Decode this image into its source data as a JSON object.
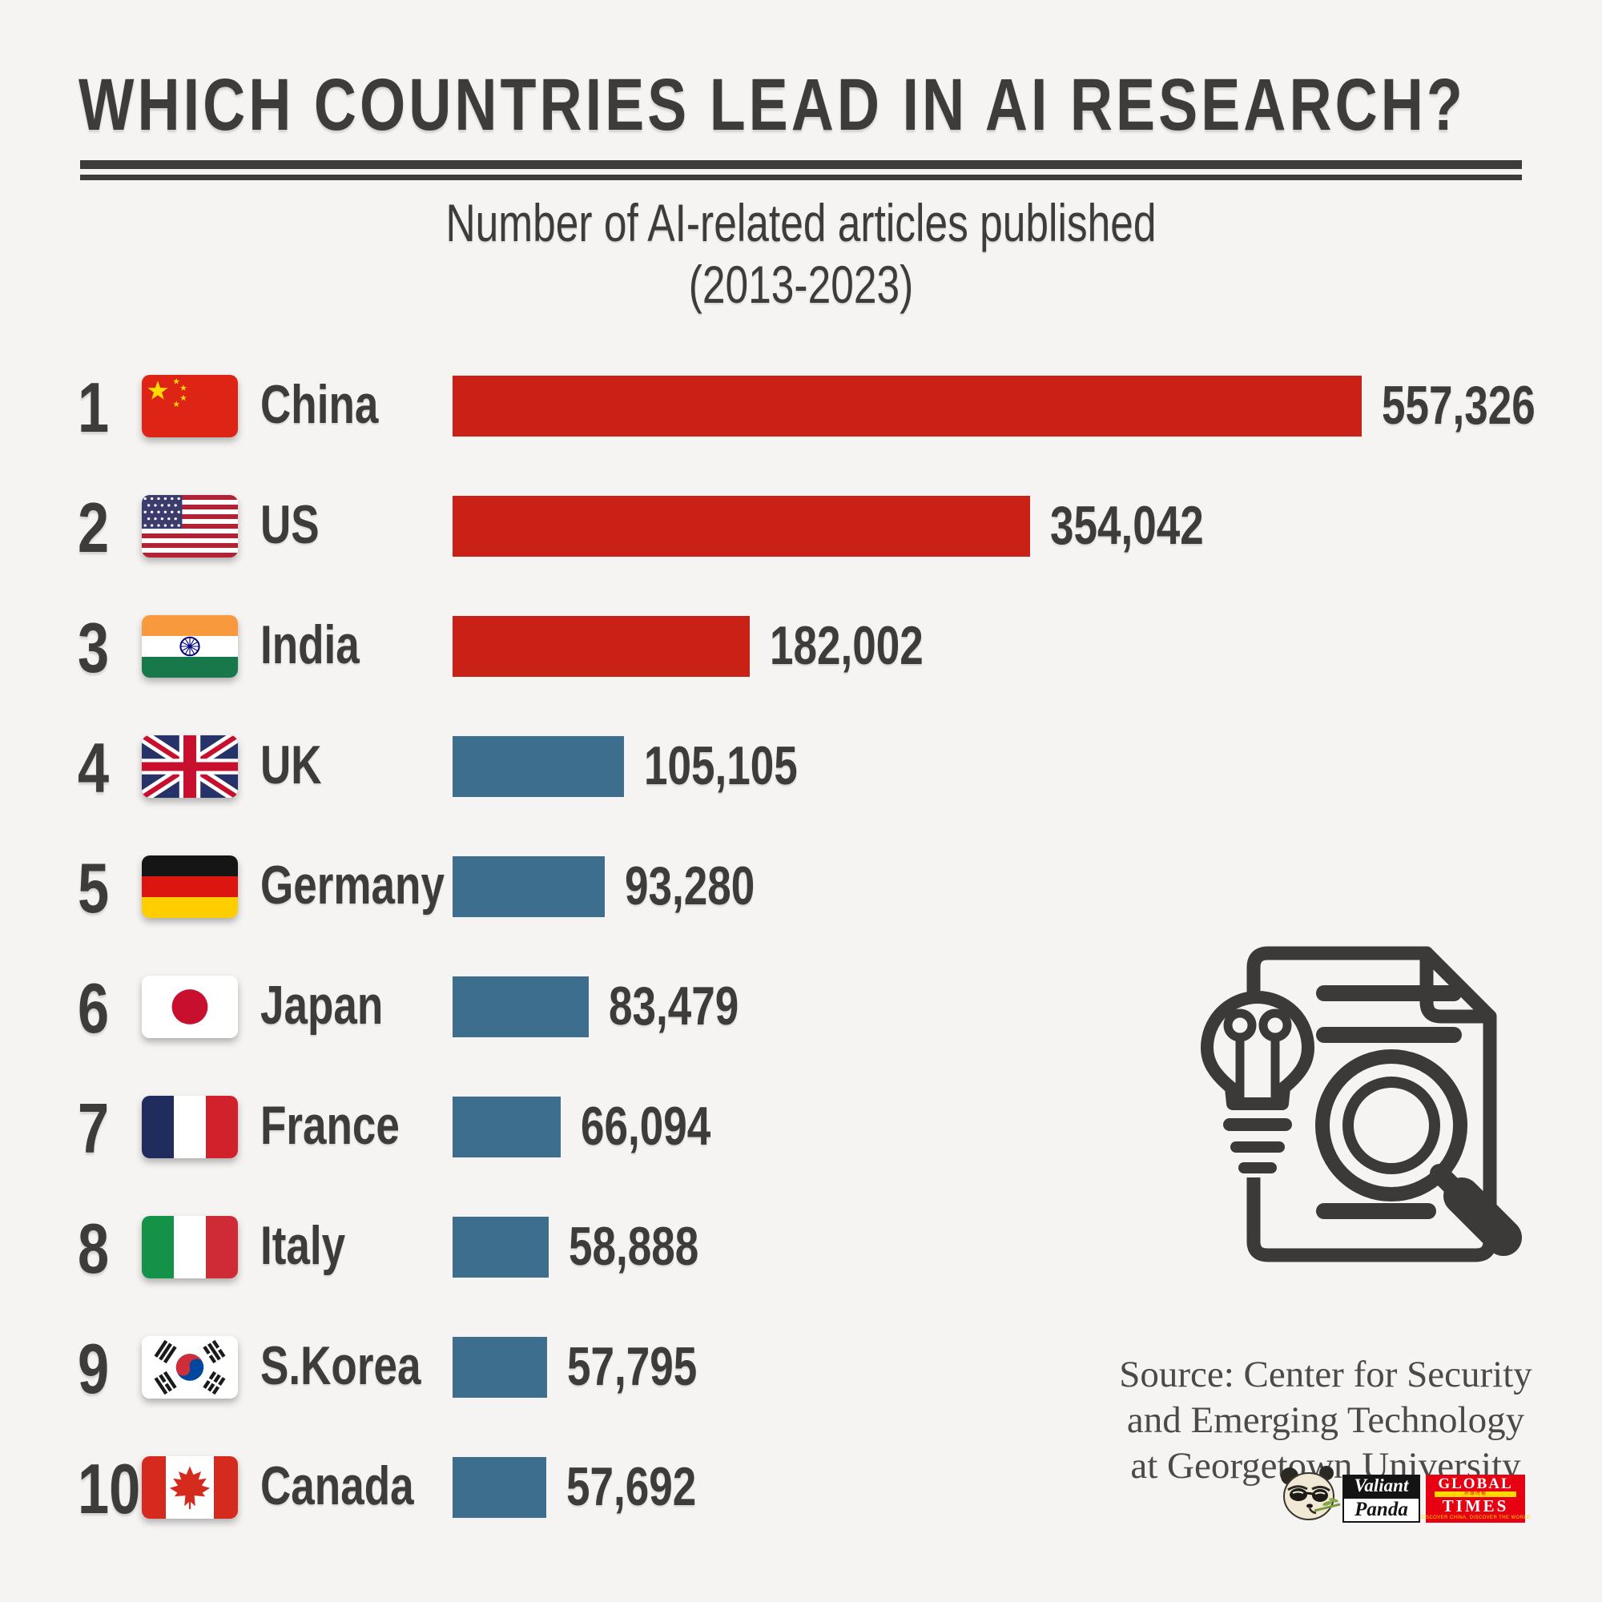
{
  "page": {
    "background_color": "#f5f4f2",
    "text_color": "#3d3c3b"
  },
  "header": {
    "title": "WHICH COUNTRIES LEAD IN AI RESEARCH?",
    "subtitle_line1": "Number of AI-related articles published",
    "subtitle_line2": "(2013-2023)"
  },
  "chart_data": {
    "type": "bar",
    "orientation": "horizontal",
    "title": "Number of AI-related articles published (2013-2023)",
    "categories": [
      "China",
      "US",
      "India",
      "UK",
      "Germany",
      "Japan",
      "France",
      "Italy",
      "S.Korea",
      "Canada"
    ],
    "values": [
      557326,
      354042,
      182002,
      105105,
      93280,
      83479,
      66094,
      58888,
      57795,
      57692
    ],
    "value_labels": [
      "557,326",
      "354,042",
      "182,002",
      "105,105",
      "93,280",
      "83,479",
      "66,094",
      "58,888",
      "57,795",
      "57,692"
    ],
    "x_axis_max": 557326,
    "bar_color_top3": "#c92115",
    "bar_color_others": "#3e6e8e",
    "legend": "none",
    "grid": "off",
    "rows": [
      {
        "rank": "1",
        "country": "China",
        "flag": "cn",
        "value": 557326,
        "label": "557,326",
        "color": "#c92115"
      },
      {
        "rank": "2",
        "country": "US",
        "flag": "us",
        "value": 354042,
        "label": "354,042",
        "color": "#c92115"
      },
      {
        "rank": "3",
        "country": "India",
        "flag": "in",
        "value": 182002,
        "label": "182,002",
        "color": "#c92115"
      },
      {
        "rank": "4",
        "country": "UK",
        "flag": "gb",
        "value": 105105,
        "label": "105,105",
        "color": "#3e6e8e"
      },
      {
        "rank": "5",
        "country": "Germany",
        "flag": "de",
        "value": 93280,
        "label": "93,280",
        "color": "#3e6e8e"
      },
      {
        "rank": "6",
        "country": "Japan",
        "flag": "jp",
        "value": 83479,
        "label": "83,479",
        "color": "#3e6e8e"
      },
      {
        "rank": "7",
        "country": "France",
        "flag": "fr",
        "value": 66094,
        "label": "66,094",
        "color": "#3e6e8e"
      },
      {
        "rank": "8",
        "country": "Italy",
        "flag": "it",
        "value": 58888,
        "label": "58,888",
        "color": "#3e6e8e"
      },
      {
        "rank": "9",
        "country": "S.Korea",
        "flag": "kr",
        "value": 57795,
        "label": "57,795",
        "color": "#3e6e8e"
      },
      {
        "rank": "10",
        "country": "Canada",
        "flag": "ca",
        "value": 57692,
        "label": "57,692",
        "color": "#3e6e8e"
      }
    ]
  },
  "source": {
    "line1": "Source: Center for Security",
    "line2": "and Emerging Technology",
    "line3": "at Georgetown University"
  },
  "logos": {
    "valiant_panda": {
      "word1": "Valiant",
      "word2": "Panda"
    },
    "global_times": {
      "word1": "GLOBAL",
      "word2": "TIMES",
      "chinese": "环球时报",
      "tagline": "DISCOVER CHINA, DISCOVER THE WORLD",
      "brand_red": "#e60012",
      "accent_yellow": "#ffd800"
    }
  }
}
